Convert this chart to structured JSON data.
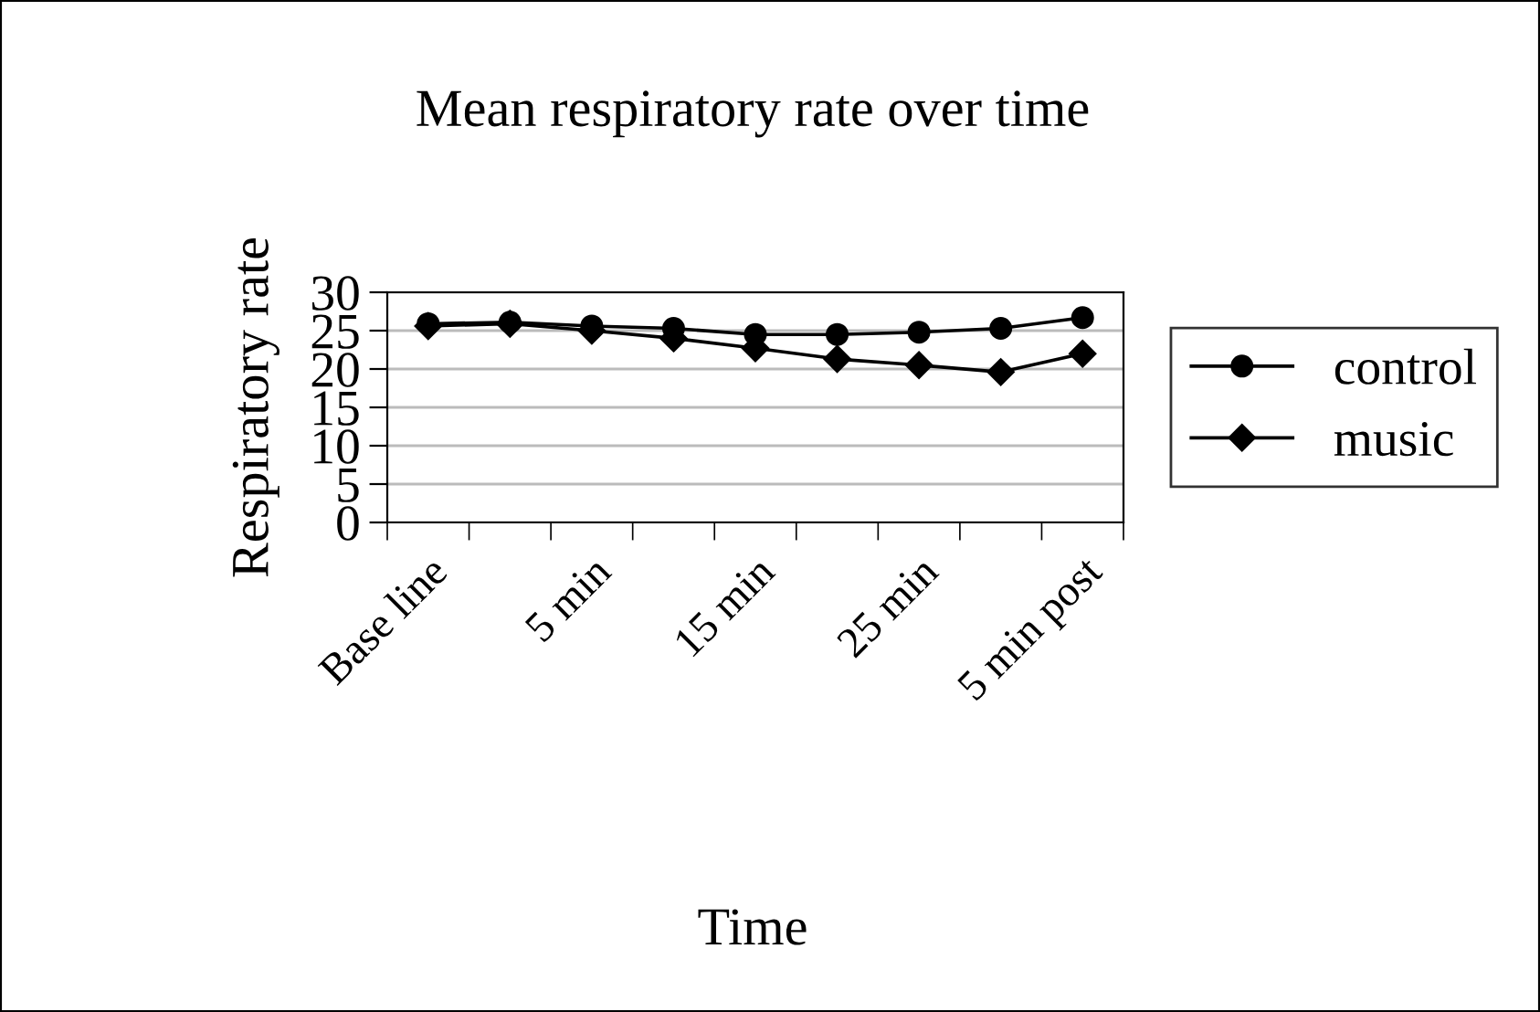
{
  "chart_data": {
    "type": "line",
    "title": "Mean respiratory rate over time",
    "xlabel": "Time",
    "ylabel": "Respiratory rate",
    "categories": [
      "Base line",
      null,
      "5 min",
      null,
      "15 min",
      null,
      "25 min",
      null,
      "5 min post"
    ],
    "series": [
      {
        "name": "control",
        "color": "#000000",
        "marker": "circle",
        "values": [
          25.9,
          26.1,
          25.6,
          25.3,
          24.5,
          24.5,
          24.8,
          25.3,
          26.7
        ]
      },
      {
        "name": "music",
        "color": "#000000",
        "marker": "diamond",
        "values": [
          25.6,
          25.9,
          25.0,
          24.0,
          22.7,
          21.3,
          20.5,
          19.6,
          22.0
        ]
      }
    ],
    "ylim": [
      0,
      30
    ],
    "yticks": [
      0,
      5,
      10,
      15,
      20,
      25,
      30
    ],
    "grid": "y",
    "legend": "right"
  }
}
